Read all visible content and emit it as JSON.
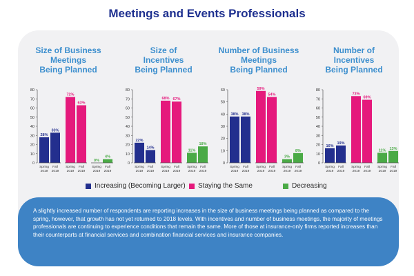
{
  "header": {
    "title": "Meetings and Events Professionals"
  },
  "colors": {
    "increasing": "#232f8e",
    "same": "#e5197c",
    "decreasing": "#4aaa46",
    "title_blue": "#1d2f8f",
    "subtitle_blue": "#3d8fce",
    "note_bg": "#3e83c5"
  },
  "legend": [
    {
      "label": "Increasing (Becoming Larger)",
      "color": "#232f8e"
    },
    {
      "label": "Staying the Same",
      "color": "#e5197c"
    },
    {
      "label": "Decreasing",
      "color": "#4aaa46"
    }
  ],
  "note": "A slightly increased number of respondents are reporting increases in the size of business meetings being planned as compared to the spring, however, that growth has not yet returned to 2018 levels. With incentives and number of business meetings, the majority of meetings professionals are continuing to experience conditions that remain the same. More of those at insurance-only firms reported increases than their counterparts at financial services and combination financial services and insurance companies.",
  "chart_data": [
    {
      "type": "bar",
      "title": "Size of Business Meetings Being Planned",
      "title_lines": [
        "Size of Business",
        "Meetings",
        "Being Planned"
      ],
      "categories": [
        "Spring 2019",
        "Fall 2019"
      ],
      "yticks": [
        0,
        10,
        20,
        30,
        40,
        50,
        60,
        70,
        80
      ],
      "ylim": [
        0,
        80
      ],
      "series": [
        {
          "name": "Increasing (Becoming Larger)",
          "values": [
            28,
            33
          ],
          "labels": [
            "28%",
            "33%"
          ]
        },
        {
          "name": "Staying the Same",
          "values": [
            72,
            63
          ],
          "labels": [
            "72%",
            "63%"
          ]
        },
        {
          "name": "Decreasing",
          "values": [
            0,
            4
          ],
          "labels": [
            "0%",
            "4%"
          ]
        }
      ]
    },
    {
      "type": "bar",
      "title": "Size of Incentives Being Planned",
      "title_lines": [
        "Size of",
        "Incentives",
        "Being Planned"
      ],
      "categories": [
        "Spring 2019",
        "Fall 2019"
      ],
      "yticks": [
        0,
        10,
        20,
        30,
        40,
        50,
        60,
        70,
        80
      ],
      "ylim": [
        0,
        80
      ],
      "series": [
        {
          "name": "Increasing (Becoming Larger)",
          "values": [
            22,
            14
          ],
          "labels": [
            "22%",
            "14%"
          ]
        },
        {
          "name": "Staying the Same",
          "values": [
            68,
            67
          ],
          "labels": [
            "68%",
            "67%"
          ]
        },
        {
          "name": "Decreasing",
          "values": [
            11,
            18
          ],
          "labels": [
            "11%",
            "18%"
          ]
        }
      ]
    },
    {
      "type": "bar",
      "title": "Number of Business Meetings Being Planned",
      "title_lines": [
        "Number of Business",
        "Meetings",
        "Being Planned"
      ],
      "categories": [
        "Spring 2019",
        "Fall 2019"
      ],
      "yticks": [
        0,
        10,
        20,
        30,
        40,
        50,
        60
      ],
      "ylim": [
        0,
        60
      ],
      "series": [
        {
          "name": "Increasing (Becoming Larger)",
          "values": [
            38,
            38
          ],
          "labels": [
            "38%",
            "38%"
          ]
        },
        {
          "name": "Staying the Same",
          "values": [
            59,
            54
          ],
          "labels": [
            "59%",
            "54%"
          ]
        },
        {
          "name": "Decreasing",
          "values": [
            3,
            8
          ],
          "labels": [
            "3%",
            "8%"
          ]
        }
      ]
    },
    {
      "type": "bar",
      "title": "Number of Incentives Being Planned",
      "title_lines": [
        "Number of",
        "Incentives",
        "Being Planned"
      ],
      "categories": [
        "Spring 2019",
        "Fall 2019"
      ],
      "yticks": [
        0,
        10,
        20,
        30,
        40,
        50,
        60,
        70,
        80
      ],
      "ylim": [
        0,
        80
      ],
      "series": [
        {
          "name": "Increasing (Becoming Larger)",
          "values": [
            16,
            19
          ],
          "labels": [
            "16%",
            "19%"
          ]
        },
        {
          "name": "Staying the Same",
          "values": [
            73,
            69
          ],
          "labels": [
            "73%",
            "69%"
          ]
        },
        {
          "name": "Decreasing",
          "values": [
            11,
            13
          ],
          "labels": [
            "11%",
            "13%"
          ]
        }
      ]
    }
  ]
}
